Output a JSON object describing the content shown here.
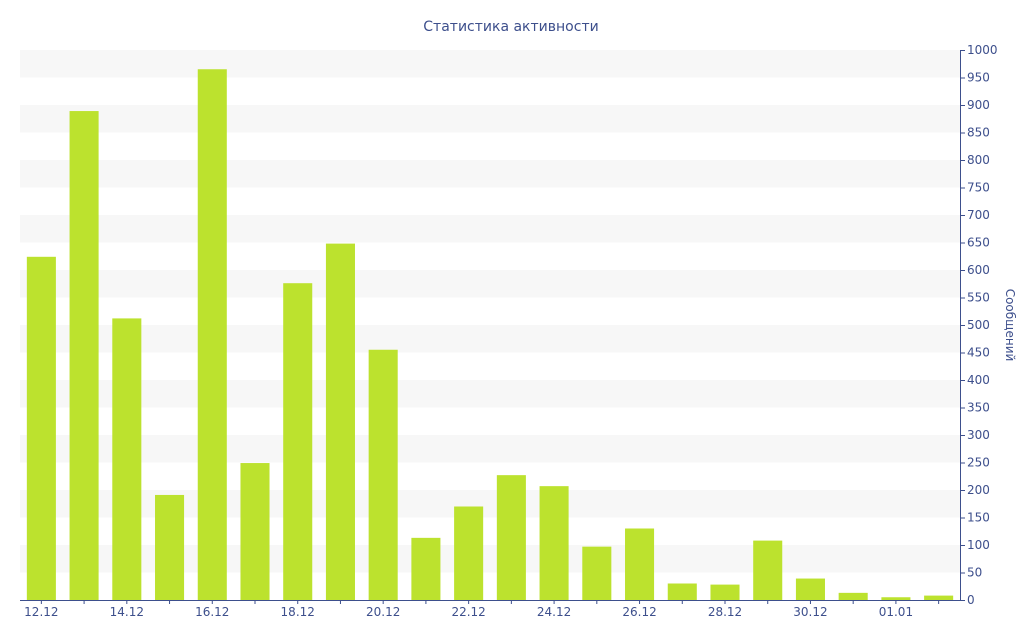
{
  "chart_data": {
    "type": "bar",
    "title": "Статистика активности",
    "xlabel": "",
    "ylabel": "Сообщений",
    "y_axis_side": "right",
    "ylim": [
      0,
      1000
    ],
    "y_ticks": [
      0,
      50,
      100,
      150,
      200,
      250,
      300,
      350,
      400,
      450,
      500,
      550,
      600,
      650,
      700,
      750,
      800,
      850,
      900,
      950,
      1000
    ],
    "x_tick_labels": [
      "12.12",
      "",
      "14.12",
      "",
      "16.12",
      "",
      "18.12",
      "",
      "20.12",
      "",
      "22.12",
      "",
      "24.12",
      "",
      "26.12",
      "",
      "28.12",
      "",
      "30.12",
      "",
      "01.01",
      ""
    ],
    "categories": [
      "12.12",
      "13.12",
      "14.12",
      "15.12",
      "16.12",
      "17.12",
      "18.12",
      "19.12",
      "20.12",
      "21.12",
      "22.12",
      "23.12",
      "24.12",
      "25.12",
      "26.12",
      "27.12",
      "28.12",
      "29.12",
      "30.12",
      "31.12",
      "01.01",
      "02.01"
    ],
    "values": [
      624,
      889,
      512,
      191,
      965,
      249,
      576,
      648,
      455,
      113,
      170,
      227,
      207,
      97,
      130,
      30,
      28,
      108,
      39,
      13,
      5,
      8
    ],
    "bar_color": "#bce22e",
    "text_color": "#3d4f8c",
    "band_color": "#f7f7f7",
    "grid": "alternating-bands",
    "legend": "none"
  }
}
